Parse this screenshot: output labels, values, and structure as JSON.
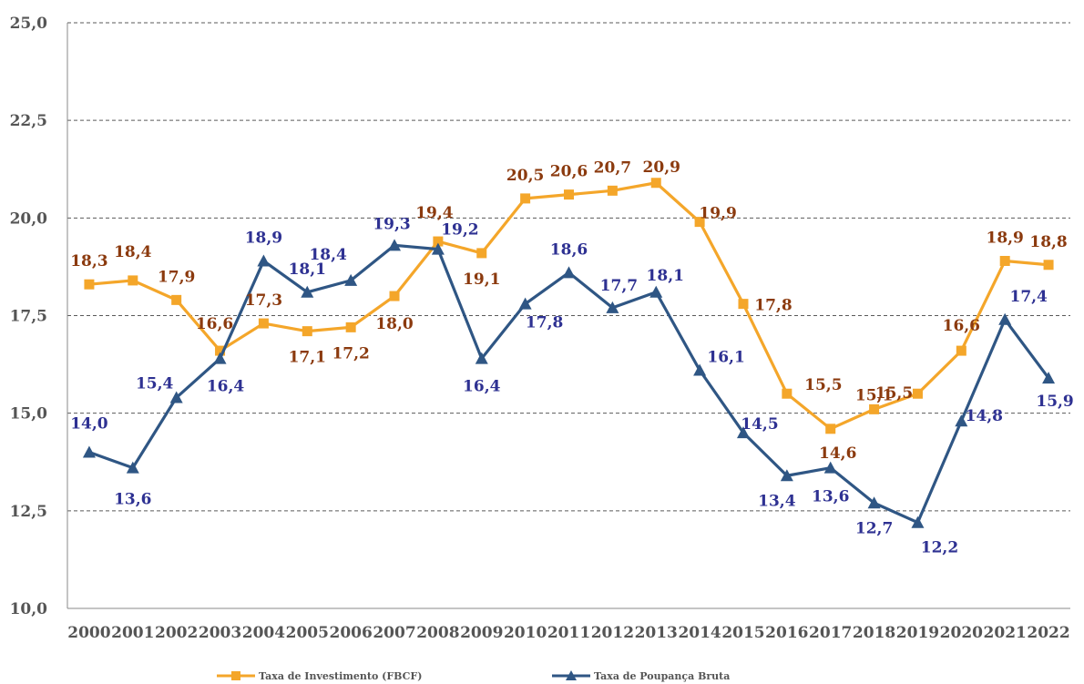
{
  "chart_data": {
    "type": "line",
    "title": "",
    "xlabel": "",
    "ylabel": "",
    "categories": [
      "2000",
      "2001",
      "2002",
      "2003",
      "2004",
      "2005",
      "2006",
      "2007",
      "2008",
      "2009",
      "2010",
      "2011",
      "2012",
      "2013",
      "2014",
      "2015",
      "2016",
      "2017",
      "2018",
      "2019",
      "2020",
      "2021",
      "2022"
    ],
    "ylim": [
      10.0,
      25.0
    ],
    "yticks": [
      "10,0",
      "12,5",
      "15,0",
      "17,5",
      "20,0",
      "22,5",
      "25,0"
    ],
    "grid": true,
    "legend_position": "bottom",
    "series": [
      {
        "name": "Taxa de Investimento (FBCF)",
        "color": "#f4a62a",
        "label_color": "#8b3a0e",
        "marker": "square",
        "values": [
          18.3,
          18.4,
          17.9,
          16.6,
          17.3,
          17.1,
          17.2,
          18.0,
          19.4,
          19.1,
          20.5,
          20.6,
          20.7,
          20.9,
          19.9,
          17.8,
          15.5,
          14.6,
          15.1,
          15.5,
          16.6,
          18.9,
          18.8
        ],
        "labels": [
          "18,3",
          "18,4",
          "17,9",
          "16,6",
          "17,3",
          "17,1",
          "17,2",
          "18,0",
          "19,4",
          "19,1",
          "20,5",
          "20,6",
          "20,7",
          "20,9",
          "19,9",
          "17,8",
          "15,5",
          "14,6",
          "15,1",
          "15,5",
          "16,6",
          "18,9",
          "18,8"
        ]
      },
      {
        "name": "Taxa de Poupança Bruta",
        "color": "#2f5684",
        "label_color": "#2e3192",
        "marker": "triangle",
        "values": [
          14.0,
          13.6,
          15.4,
          16.4,
          18.9,
          18.1,
          18.4,
          19.3,
          19.2,
          16.4,
          17.8,
          18.6,
          17.7,
          18.1,
          16.1,
          14.5,
          13.4,
          13.6,
          12.7,
          12.2,
          14.8,
          17.4,
          15.9
        ],
        "labels": [
          "14,0",
          "13,6",
          "15,4",
          "16,4",
          "18,9",
          "18,1",
          "18,4",
          "19,3",
          "19,2",
          "16,4",
          "17,8",
          "18,6",
          "17,7",
          "18,1",
          "16,1",
          "14,5",
          "13,4",
          "13,6",
          "12,7",
          "12,2",
          "14,8",
          "17,4",
          "15,9"
        ]
      }
    ]
  }
}
